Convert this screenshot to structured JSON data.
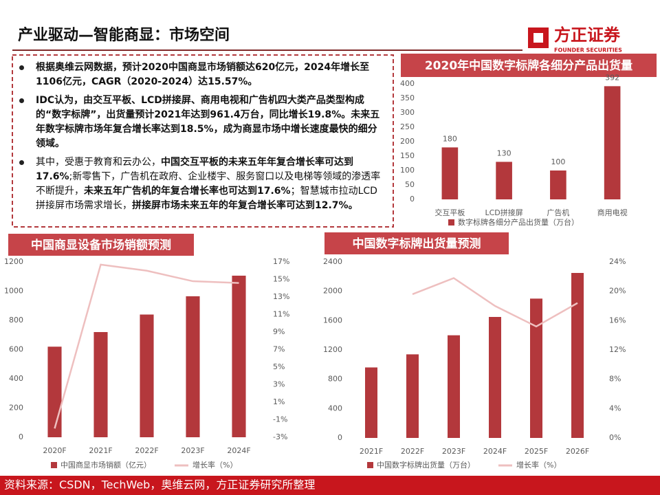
{
  "header": {
    "title": "产业驱动—智能商显：市场空间",
    "logo": {
      "name": "方正证券",
      "subtitle": "FOUNDER SECURITIES"
    }
  },
  "bullets": [
    [
      {
        "text": "根据奥维云网数据，预计2020中国商显市场销额达620亿元，2024年增长至1106亿元，CAGR（2020-2024）达15.57%。",
        "bold": true
      }
    ],
    [
      {
        "text": "IDC认为，由交互平板、LCD拼接屏、商用电视和广告机四大类产品类型构成的“数字标牌”，出货量预计2021年达到961.4万台，同比增长19.8%。未来五年数字标牌市场年复合增长率达到18.5%，成为商显市场中增长速度最快的细分领域。",
        "bold": true
      }
    ],
    [
      {
        "text": "其中，受惠于教育和云办公，",
        "bold": false
      },
      {
        "text": "中国交互平板的未来五年年复合增长率可达到17.6%",
        "bold": true
      },
      {
        "text": ";新零售下，广告机在政府、企业楼宇、服务窗口以及电梯等领域的渗透率不断提升，",
        "bold": false
      },
      {
        "text": "未来五年广告机的年复合增长率也可达到17.6%",
        "bold": true
      },
      {
        "text": "；智慧城市拉动LCD拼接屏市场需求增长，",
        "bold": false
      },
      {
        "text": "拼接屏市场未来五年的年复合增长率可达到12.7%。",
        "bold": true
      }
    ]
  ],
  "footer": {
    "source": "资料来源：CSDN，TechWeb，奥维云网，方正证券研究所整理"
  },
  "chart_data": [
    {
      "type": "bar",
      "title": "2020年中国数字标牌各细分产品出货量",
      "categories": [
        "交互平板",
        "LCD拼接屏",
        "广告机",
        "商用电视"
      ],
      "series": [
        {
          "name": "数字标牌各细分产品出货量（万台）",
          "color": "#b3383c",
          "values": [
            180,
            130,
            100,
            392
          ]
        }
      ],
      "data_labels": true,
      "ylim": [
        0,
        400
      ],
      "yticks": [
        0,
        50,
        100,
        150,
        200,
        250,
        300,
        350,
        400
      ]
    },
    {
      "type": "bar_line",
      "title": "中国商显设备市场销额预测",
      "categories": [
        "2020F",
        "2021F",
        "2022F",
        "2023F",
        "2024F"
      ],
      "series": [
        {
          "name": "中国商显市场销额（亿元）",
          "color": "#b3383c",
          "values": [
            620,
            720,
            840,
            965,
            1106
          ]
        },
        {
          "name": "增长率（%）",
          "color": "#eebfbf",
          "type": "line",
          "axis": "y2",
          "values": [
            -2,
            16.7,
            16,
            14.8,
            14.6
          ]
        }
      ],
      "ylim": [
        0,
        1200
      ],
      "yticks": [
        0,
        200,
        400,
        600,
        800,
        1000,
        1200
      ],
      "y2lim": [
        -3,
        17
      ],
      "y2ticks": [
        {
          "value": -3,
          "label": "-3%"
        },
        {
          "value": -1,
          "label": "-1%"
        },
        {
          "value": 1,
          "label": "1%"
        },
        {
          "value": 3,
          "label": "3%"
        },
        {
          "value": 5,
          "label": "5%"
        },
        {
          "value": 7,
          "label": "7%"
        },
        {
          "value": 9,
          "label": "9%"
        },
        {
          "value": 11,
          "label": "11%"
        },
        {
          "value": 13,
          "label": "13%"
        },
        {
          "value": 15,
          "label": "15%"
        },
        {
          "value": 17,
          "label": "17%"
        }
      ]
    },
    {
      "type": "bar_line",
      "title": "中国数字标牌出货量预测",
      "categories": [
        "2021F",
        "2022F",
        "2023F",
        "2024F",
        "2025F",
        "2026F"
      ],
      "series": [
        {
          "name": "中国数字标牌出货量（万台）",
          "color": "#b3383c",
          "values": [
            961.4,
            1140,
            1400,
            1650,
            1900,
            2250
          ]
        },
        {
          "name": "增长率（%）",
          "color": "#eebfbf",
          "type": "line",
          "axis": "y2",
          "values": [
            null,
            19.6,
            21.8,
            18,
            15.2,
            18.4
          ]
        }
      ],
      "ylim": [
        0,
        2400
      ],
      "yticks": [
        0,
        400,
        800,
        1200,
        1600,
        2000,
        2400
      ],
      "y2lim": [
        0,
        24
      ],
      "y2ticks": [
        {
          "value": 0,
          "label": "0%"
        },
        {
          "value": 4,
          "label": "4%"
        },
        {
          "value": 8,
          "label": "8%"
        },
        {
          "value": 12,
          "label": "12%"
        },
        {
          "value": 16,
          "label": "16%"
        },
        {
          "value": 20,
          "label": "20%"
        },
        {
          "value": 24,
          "label": "24%"
        }
      ]
    }
  ]
}
